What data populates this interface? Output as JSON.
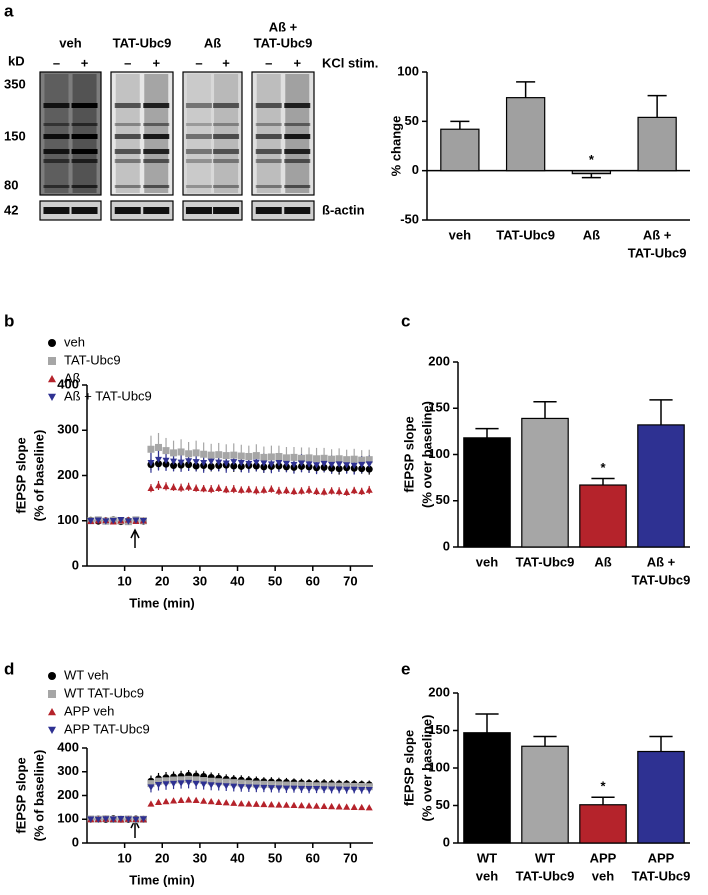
{
  "panel_labels": [
    "a",
    "b",
    "c",
    "d",
    "e"
  ],
  "blot": {
    "lanes": [
      [
        "veh"
      ],
      [
        "TAT-Ubc9"
      ],
      [
        "Aß"
      ],
      [
        "Aß +",
        "TAT-Ubc9"
      ]
    ],
    "stim_signs": [
      "–",
      "+"
    ],
    "kd_label": "kD",
    "stim_label": "KCl stim.",
    "mw_markers": [
      350,
      150,
      80,
      42
    ],
    "loading_label": "ß-actin"
  },
  "chart_data": [
    {
      "type": "bar",
      "y_label": [
        "% change"
      ],
      "categories": [
        [
          "veh"
        ],
        [
          "TAT-Ubc9"
        ],
        [
          "Aß"
        ],
        [
          "Aß +",
          "TAT-Ubc9"
        ]
      ],
      "values": [
        42,
        74,
        -3,
        54
      ],
      "errors": [
        8,
        16,
        4,
        22
      ],
      "color": "#a0a0a0",
      "annotations": [
        null,
        null,
        "*",
        null
      ],
      "ylim": [
        -50,
        100
      ],
      "yticks": [
        -50,
        0,
        50,
        100
      ]
    },
    {
      "type": "line",
      "y_label": [
        "fEPSP slope",
        "(% of baseline)"
      ],
      "x_label": "Time (min)",
      "legend": "upper left",
      "x": [
        1,
        3,
        5,
        7,
        9,
        11,
        13,
        15,
        17,
        19,
        21,
        23,
        25,
        27,
        29,
        31,
        33,
        35,
        37,
        39,
        41,
        43,
        45,
        47,
        49,
        51,
        53,
        55,
        57,
        59,
        61,
        63,
        65,
        67,
        69,
        71,
        73,
        75
      ],
      "series": [
        {
          "name": "veh",
          "color": "#000000",
          "marker": "circle",
          "values": [
            101,
            99,
            100,
            102,
            98,
            100,
            101,
            99,
            224,
            226,
            225,
            222,
            223,
            224,
            221,
            222,
            220,
            222,
            223,
            221,
            220,
            222,
            221,
            219,
            220,
            221,
            219,
            218,
            220,
            219,
            217,
            218,
            216,
            215,
            217,
            216,
            215,
            214
          ],
          "errors": [
            5,
            4,
            5,
            5,
            4,
            5,
            5,
            4,
            12,
            13,
            12,
            11,
            12,
            13,
            12,
            12,
            11,
            12,
            12,
            13,
            12,
            11,
            12,
            13,
            12,
            12,
            11,
            12,
            12,
            13,
            12,
            11,
            12,
            13,
            12,
            12,
            11,
            12
          ]
        },
        {
          "name": "TAT-Ubc9",
          "color": "#a6a6a6",
          "marker": "square",
          "values": [
            100,
            102,
            99,
            101,
            100,
            98,
            102,
            100,
            258,
            262,
            255,
            250,
            252,
            248,
            250,
            247,
            245,
            246,
            244,
            245,
            243,
            242,
            244,
            240,
            241,
            242,
            239,
            240,
            238,
            239,
            237,
            238,
            236,
            237,
            235,
            236,
            234,
            235
          ],
          "errors": [
            6,
            5,
            6,
            6,
            5,
            6,
            6,
            5,
            30,
            32,
            28,
            27,
            28,
            26,
            27,
            26,
            25,
            26,
            25,
            26,
            25,
            24,
            25,
            24,
            25,
            24,
            24,
            23,
            24,
            23,
            24,
            23,
            22,
            23,
            22,
            23,
            22,
            22
          ]
        },
        {
          "name": "Aß",
          "color": "#b5232b",
          "marker": "triangle-up",
          "values": [
            99,
            100,
            101,
            98,
            100,
            102,
            99,
            100,
            172,
            178,
            176,
            174,
            173,
            175,
            172,
            171,
            170,
            172,
            169,
            170,
            168,
            169,
            167,
            168,
            170,
            166,
            167,
            165,
            166,
            168,
            165,
            164,
            166,
            165,
            163,
            167,
            165,
            168
          ],
          "errors": [
            4,
            5,
            4,
            4,
            5,
            4,
            4,
            5,
            9,
            10,
            9,
            8,
            9,
            9,
            8,
            8,
            9,
            8,
            8,
            9,
            8,
            8,
            9,
            8,
            8,
            9,
            8,
            8,
            8,
            9,
            8,
            8,
            8,
            9,
            8,
            8,
            8,
            9
          ]
        },
        {
          "name": "Aß + TAT-Ubc9",
          "color": "#2e3192",
          "marker": "triangle-down",
          "values": [
            100,
            101,
            99,
            100,
            102,
            99,
            101,
            100,
            228,
            235,
            233,
            231,
            229,
            232,
            230,
            228,
            231,
            229,
            227,
            230,
            228,
            226,
            229,
            227,
            225,
            228,
            226,
            224,
            227,
            225,
            223,
            226,
            224,
            225,
            223,
            222,
            224,
            225
          ],
          "errors": [
            5,
            5,
            4,
            5,
            5,
            4,
            5,
            5,
            22,
            24,
            23,
            22,
            21,
            22,
            21,
            22,
            21,
            20,
            21,
            20,
            21,
            20,
            20,
            21,
            20,
            20,
            19,
            20,
            20,
            19,
            20,
            19,
            20,
            19,
            19,
            20,
            19,
            19
          ]
        }
      ],
      "xlim": [
        0,
        76
      ],
      "xticks": [
        10,
        20,
        30,
        40,
        50,
        60,
        70
      ],
      "ylim": [
        0,
        400
      ],
      "yticks": [
        0,
        100,
        200,
        300,
        400
      ]
    },
    {
      "type": "bar",
      "y_label": [
        "fEPSP slope",
        "(% over baseline)"
      ],
      "categories": [
        [
          "veh"
        ],
        [
          "TAT-Ubc9"
        ],
        [
          "Aß"
        ],
        [
          "Aß +",
          "TAT-Ubc9"
        ]
      ],
      "values": [
        118,
        139,
        67,
        132
      ],
      "errors": [
        10,
        18,
        7,
        27
      ],
      "colors": [
        "#000000",
        "#a6a6a6",
        "#b5232b",
        "#2e3192"
      ],
      "annotations": [
        null,
        null,
        "*",
        null
      ],
      "ylim": [
        0,
        200
      ],
      "yticks": [
        0,
        50,
        100,
        150,
        200
      ]
    },
    {
      "type": "line",
      "y_label": [
        "fEPSP slope",
        "(% of baseline)"
      ],
      "x_label": "Time (min)",
      "legend": "upper left",
      "x": [
        1,
        3,
        5,
        7,
        9,
        11,
        13,
        15,
        17,
        19,
        21,
        23,
        25,
        27,
        29,
        31,
        33,
        35,
        37,
        39,
        41,
        43,
        45,
        47,
        49,
        51,
        53,
        55,
        57,
        59,
        61,
        63,
        65,
        67,
        69,
        71,
        73,
        75
      ],
      "series": [
        {
          "name": "WT veh",
          "color": "#000000",
          "marker": "circle",
          "values": [
            100,
            101,
            99,
            102,
            100,
            99,
            101,
            100,
            260,
            270,
            275,
            278,
            280,
            285,
            282,
            280,
            276,
            272,
            268,
            266,
            264,
            262,
            260,
            258,
            257,
            256,
            255,
            254,
            252,
            251,
            250,
            250,
            249,
            248,
            248,
            247,
            246,
            245
          ],
          "errors": [
            6,
            5,
            6,
            6,
            5,
            6,
            6,
            5,
            24,
            25,
            24,
            23,
            24,
            22,
            23,
            22,
            21,
            22,
            21,
            20,
            21,
            20,
            20,
            19,
            20,
            19,
            19,
            18,
            19,
            18,
            18,
            19,
            18,
            18,
            17,
            18,
            17,
            18
          ]
        },
        {
          "name": "WT TAT-Ubc9",
          "color": "#a6a6a6",
          "marker": "square",
          "values": [
            101,
            100,
            102,
            99,
            100,
            101,
            98,
            100,
            250,
            260,
            262,
            265,
            266,
            268,
            266,
            263,
            260,
            258,
            256,
            254,
            252,
            250,
            248,
            247,
            246,
            245,
            244,
            243,
            243,
            242,
            241,
            240,
            240,
            239,
            239,
            238,
            238,
            237
          ],
          "errors": [
            5,
            6,
            5,
            5,
            6,
            5,
            5,
            6,
            20,
            21,
            20,
            19,
            20,
            19,
            19,
            18,
            18,
            17,
            17,
            17,
            16,
            16,
            16,
            15,
            16,
            15,
            15,
            15,
            15,
            14,
            15,
            14,
            14,
            15,
            14,
            14,
            13,
            14
          ]
        },
        {
          "name": "APP veh",
          "color": "#b5232b",
          "marker": "triangle-up",
          "values": [
            99,
            100,
            101,
            100,
            98,
            101,
            100,
            99,
            165,
            172,
            175,
            178,
            180,
            182,
            180,
            177,
            175,
            172,
            170,
            168,
            166,
            165,
            164,
            163,
            162,
            161,
            160,
            159,
            158,
            157,
            156,
            155,
            154,
            153,
            152,
            151,
            150,
            149
          ],
          "errors": [
            4,
            4,
            5,
            4,
            4,
            5,
            4,
            4,
            9,
            9,
            10,
            9,
            9,
            10,
            9,
            9,
            8,
            8,
            8,
            8,
            8,
            7,
            7,
            7,
            7,
            7,
            7,
            6,
            6,
            6,
            6,
            6,
            6,
            6,
            6,
            5,
            5,
            5
          ]
        },
        {
          "name": "APP TAT-Ubc9",
          "color": "#2e3192",
          "marker": "triangle-down",
          "values": [
            100,
            99,
            101,
            100,
            102,
            100,
            99,
            101,
            235,
            245,
            248,
            250,
            252,
            254,
            250,
            247,
            244,
            242,
            240,
            238,
            236,
            235,
            234,
            233,
            232,
            231,
            230,
            230,
            229,
            228,
            228,
            227,
            226,
            226,
            225,
            225,
            224,
            224
          ],
          "errors": [
            5,
            5,
            6,
            5,
            5,
            6,
            5,
            5,
            22,
            24,
            24,
            23,
            23,
            24,
            23,
            22,
            22,
            21,
            21,
            21,
            20,
            20,
            20,
            19,
            19,
            19,
            19,
            18,
            18,
            18,
            18,
            17,
            17,
            17,
            17,
            16,
            16,
            16
          ]
        }
      ],
      "xlim": [
        0,
        76
      ],
      "xticks": [
        10,
        20,
        30,
        40,
        50,
        60,
        70
      ],
      "ylim": [
        0,
        400
      ],
      "yticks": [
        0,
        100,
        200,
        300,
        400
      ]
    },
    {
      "type": "bar",
      "y_label": [
        "fEPSP slope",
        "(% over baseline)"
      ],
      "categories": [
        [
          "WT",
          "veh"
        ],
        [
          "WT",
          "TAT-Ubc9"
        ],
        [
          "APP",
          "veh"
        ],
        [
          "APP",
          "TAT-Ubc9"
        ]
      ],
      "values": [
        147,
        129,
        51,
        122
      ],
      "errors": [
        25,
        13,
        10,
        20
      ],
      "colors": [
        "#000000",
        "#a6a6a6",
        "#b5232b",
        "#2e3192"
      ],
      "annotations": [
        null,
        null,
        "*",
        null
      ],
      "ylim": [
        0,
        200
      ],
      "yticks": [
        0,
        50,
        100,
        150,
        200
      ]
    }
  ]
}
